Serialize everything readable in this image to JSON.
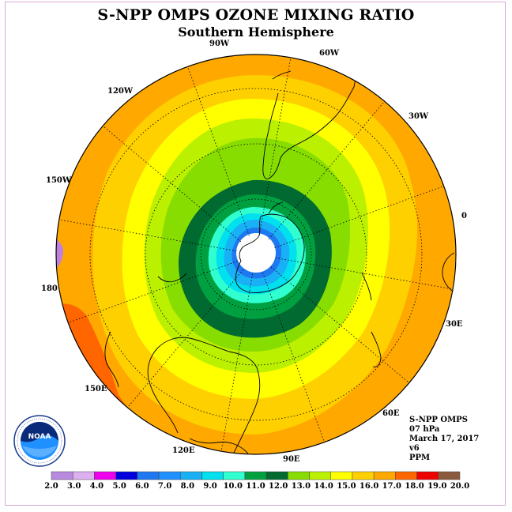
{
  "title": "S-NPP OMPS OZONE MIXING RATIO",
  "subtitle": "Southern Hemisphere",
  "longitude_labels": [
    "90W",
    "60W",
    "30W",
    "0",
    "30E",
    "60E",
    "90E",
    "120E",
    "150E",
    "180",
    "150W",
    "120W"
  ],
  "info": {
    "instrument": "S-NPP OMPS",
    "level": "07 hPa",
    "date": "March 17, 2017",
    "version": "v6",
    "unit": "PPM"
  },
  "logo": {
    "text": "NOAA",
    "icon": "noaa-logo-icon"
  },
  "legend": {
    "ticks": [
      "2.0",
      "3.0",
      "4.0",
      "5.0",
      "6.0",
      "7.0",
      "8.0",
      "9.0",
      "10.0",
      "11.0",
      "12.0",
      "13.0",
      "14.0",
      "15.0",
      "16.0",
      "17.0",
      "18.0",
      "19.0",
      "20.0"
    ],
    "colors": [
      "#b78ae0",
      "#dcb0f0",
      "#ee00ee",
      "#0000dd",
      "#1e78f0",
      "#1e90ff",
      "#1ab0f5",
      "#00e0ee",
      "#30ffd0",
      "#00a040",
      "#006a30",
      "#88dd00",
      "#bbf000",
      "#ffff00",
      "#ffd000",
      "#ffa800",
      "#ff6600",
      "#ee0000",
      "#8b5a3c"
    ]
  },
  "map_data": {
    "projection": "south-polar-stereographic",
    "variable": "ozone mixing ratio",
    "contour_levels_ppm": [
      10,
      11,
      12,
      13,
      14,
      15,
      16,
      17,
      18
    ],
    "pole_min_ppm": 7.0,
    "outer_max_ppm": 17.5
  }
}
